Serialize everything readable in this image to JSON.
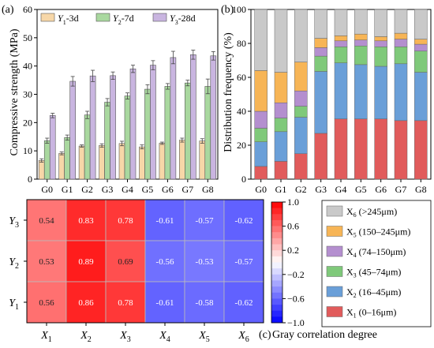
{
  "panel_labels": {
    "a": "(a)",
    "b": "(b)",
    "c": "(c)"
  },
  "chart_data": [
    {
      "id": "a",
      "type": "bar",
      "title": "",
      "ylabel": "Compressive strength (MPa)",
      "xlabel": "",
      "ylim": [
        0,
        60
      ],
      "yticks": [
        0,
        10,
        20,
        30,
        40,
        50,
        60
      ],
      "categories": [
        "G0",
        "G1",
        "G2",
        "G3",
        "G4",
        "G5",
        "G6",
        "G7",
        "G8"
      ],
      "legend_position": "top",
      "series": [
        {
          "name": "Y1-3d",
          "label_main": "Y",
          "label_sub": "1",
          "label_suffix": "-3d",
          "color": "#f7d7a8",
          "values": [
            6.6,
            9.1,
            11.7,
            11.9,
            12.6,
            11.4,
            12.7,
            13.8,
            13.5
          ],
          "errors": [
            0.6,
            0.5,
            0.4,
            0.6,
            0.8,
            0.7,
            0.4,
            0.7,
            0.8
          ]
        },
        {
          "name": "Y2-7d",
          "label_main": "Y",
          "label_sub": "2",
          "label_suffix": "-7d",
          "color": "#a9d89f",
          "values": [
            13.6,
            14.7,
            22.7,
            27.2,
            29.4,
            31.8,
            32.8,
            34.0,
            32.8
          ],
          "errors": [
            0.9,
            0.9,
            1.3,
            1.3,
            1.1,
            1.6,
            1.0,
            1.0,
            2.6
          ]
        },
        {
          "name": "Y3-28d",
          "label_main": "Y",
          "label_sub": "3",
          "label_suffix": "-28d",
          "color": "#c9b5e0",
          "values": [
            22.5,
            34.6,
            36.5,
            36.6,
            39.0,
            40.3,
            43.0,
            44.0,
            43.6
          ],
          "errors": [
            0.8,
            1.7,
            2.0,
            1.3,
            1.3,
            1.6,
            2.2,
            1.6,
            1.5
          ]
        }
      ]
    },
    {
      "id": "b",
      "type": "bar",
      "stacked": true,
      "title": "",
      "ylabel": "Distribution frequency (%)",
      "xlabel": "",
      "ylim": [
        0,
        100
      ],
      "yticks": [
        0,
        20,
        40,
        60,
        80,
        100
      ],
      "categories": [
        "G0",
        "G1",
        "G2",
        "G3",
        "G4",
        "G5",
        "G6",
        "G7",
        "G8"
      ],
      "legend_position": "below",
      "series": [
        {
          "name": "X1 (0–16μm)",
          "label_main": "X",
          "label_sub": "1",
          "label_suffix": " (0–16μm)",
          "color": "#e15b5b",
          "values": [
            7.5,
            10.5,
            15.0,
            27.0,
            35.5,
            35.5,
            35.5,
            34.5,
            34.5
          ]
        },
        {
          "name": "X2 (16–45μm)",
          "label_main": "X",
          "label_sub": "2",
          "label_suffix": " (16–45μm)",
          "color": "#6a9fd8",
          "values": [
            14.5,
            17.5,
            21.5,
            36.5,
            33.0,
            32.0,
            31.0,
            33.5,
            28.5
          ]
        },
        {
          "name": "X3 (45–74μm)",
          "label_main": "X",
          "label_sub": "3",
          "label_suffix": " (45–74μm)",
          "color": "#7fc97a",
          "values": [
            8.0,
            8.0,
            6.5,
            9.0,
            9.5,
            11.0,
            11.5,
            10.0,
            12.5
          ]
        },
        {
          "name": "X4 (74–150μm)",
          "label_main": "X",
          "label_sub": "4",
          "label_suffix": " (74–150μm)",
          "color": "#b48fcf",
          "values": [
            10.0,
            9.0,
            9.0,
            5.0,
            3.5,
            3.5,
            3.5,
            4.5,
            4.0
          ]
        },
        {
          "name": "X5 (150–245μm)",
          "label_main": "X",
          "label_sub": "5",
          "label_suffix": " (150–245μm)",
          "color": "#f7b556",
          "values": [
            24.0,
            18.0,
            17.0,
            5.5,
            3.0,
            3.5,
            2.5,
            3.5,
            3.0
          ]
        },
        {
          "name": "X6 (>245μm)",
          "label_main": "X",
          "label_sub": "6",
          "label_suffix": " (>245μm)",
          "color": "#c9c9c9",
          "values": [
            36.0,
            37.0,
            31.0,
            17.0,
            15.5,
            14.5,
            16.0,
            14.0,
            17.5
          ]
        }
      ]
    },
    {
      "id": "c",
      "type": "heatmap",
      "title": "",
      "x_categories": [
        {
          "main": "X",
          "sub": "1"
        },
        {
          "main": "X",
          "sub": "2"
        },
        {
          "main": "X",
          "sub": "3"
        },
        {
          "main": "X",
          "sub": "4"
        },
        {
          "main": "X",
          "sub": "5"
        },
        {
          "main": "X",
          "sub": "6"
        }
      ],
      "y_categories": [
        {
          "main": "Y",
          "sub": "3"
        },
        {
          "main": "Y",
          "sub": "2"
        },
        {
          "main": "Y",
          "sub": "1"
        }
      ],
      "values": [
        [
          0.54,
          0.83,
          0.78,
          -0.61,
          -0.57,
          -0.62
        ],
        [
          0.53,
          0.89,
          0.69,
          -0.56,
          -0.53,
          -0.57
        ],
        [
          0.56,
          0.86,
          0.78,
          -0.61,
          -0.58,
          -0.62
        ]
      ],
      "colorbar": {
        "label": "Gray correlation degree",
        "range": [
          -1.0,
          1.0
        ],
        "ticks": [
          "1.0",
          "0.6",
          "0.2",
          "−0.2",
          "−0.6",
          "−1.0"
        ],
        "tick_values": [
          1.0,
          0.6,
          0.2,
          -0.2,
          -0.6,
          -1.0
        ],
        "color_positive": "#ff0000",
        "color_negative": "#0000ff",
        "color_mid": "#ffffff"
      }
    }
  ]
}
